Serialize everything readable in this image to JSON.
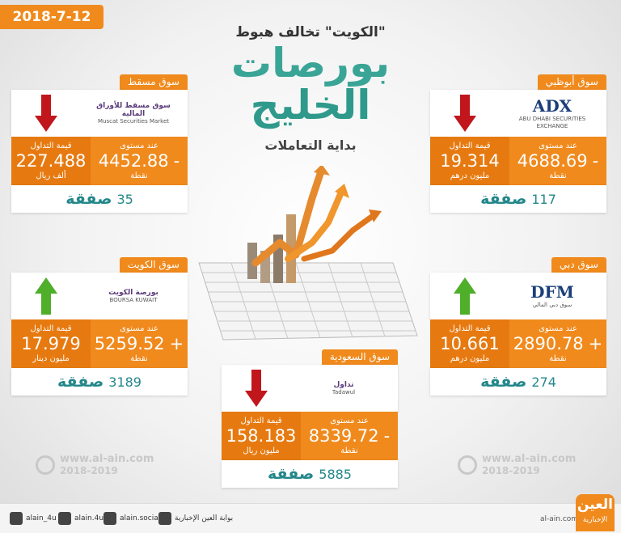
{
  "date": "2018-7-12",
  "header": {
    "kicker": "\"الكويت\" تخالف هبوط",
    "title_1": "بورصات",
    "title_2": "الخليج",
    "subtitle": "بداية التعاملات"
  },
  "markets": [
    {
      "name": "سوق مسقط",
      "logo": [
        "سوق مسقط للأوراق المالية",
        "Muscat Securities Market"
      ],
      "trend": "down",
      "level_label": "عند مستوى",
      "level": "4452.88",
      "level_sign": "-",
      "level_unit": "نقطة",
      "trade_label": "قيمة التداول",
      "trade": "227.488",
      "trade_unit": "ألف ريال",
      "deals": "35",
      "deals_label": "صفقة"
    },
    {
      "name": "سوق أبوظبي",
      "logo": [
        "ADX",
        "ABU DHABI SECURITIES EXCHANGE"
      ],
      "trend": "down",
      "level_label": "عند مستوى",
      "level": "4688.69",
      "level_sign": "-",
      "level_unit": "نقطة",
      "trade_label": "قيمة التداول",
      "trade": "19.314",
      "trade_unit": "مليون درهم",
      "deals": "117",
      "deals_label": "صفقة"
    },
    {
      "name": "سوق الكويت",
      "logo": [
        "بورصة الكويت",
        "BOURSA KUWAIT"
      ],
      "trend": "up",
      "level_label": "عند مستوى",
      "level": "5259.52",
      "level_sign": "+",
      "level_unit": "نقطة",
      "trade_label": "قيمة التداول",
      "trade": "17.979",
      "trade_unit": "مليون دينار",
      "deals": "3189",
      "deals_label": "صفقة"
    },
    {
      "name": "سوق دبي",
      "logo": [
        "DFM",
        "سوق دبي المالي"
      ],
      "trend": "up",
      "level_label": "عند مستوى",
      "level": "2890.78",
      "level_sign": "+",
      "level_unit": "نقطة",
      "trade_label": "قيمة التداول",
      "trade": "10.661",
      "trade_unit": "مليون درهم",
      "deals": "274",
      "deals_label": "صفقة"
    },
    {
      "name": "سوق السعودية",
      "logo": [
        "تداول",
        "Tadawul"
      ],
      "trend": "down",
      "level_label": "عند مستوى",
      "level": "8339.72",
      "level_sign": "-",
      "level_unit": "نقطة",
      "trade_label": "قيمة التداول",
      "trade": "158.183",
      "trade_unit": "مليون ريال",
      "deals": "5885",
      "deals_label": "صفقة"
    }
  ],
  "watermarks": [
    {
      "site": "www.al-ain.com",
      "years": "2018-2019"
    },
    {
      "site": "www.al-ain.com",
      "years": "2018-2019"
    }
  ],
  "footer": {
    "social": [
      "alain_4u",
      "alain.4u",
      "alain.social",
      "بوابة العين الإخبارية"
    ],
    "site": "al-ain.com",
    "brand": "العين",
    "brand_sub": "الإخبارية"
  }
}
